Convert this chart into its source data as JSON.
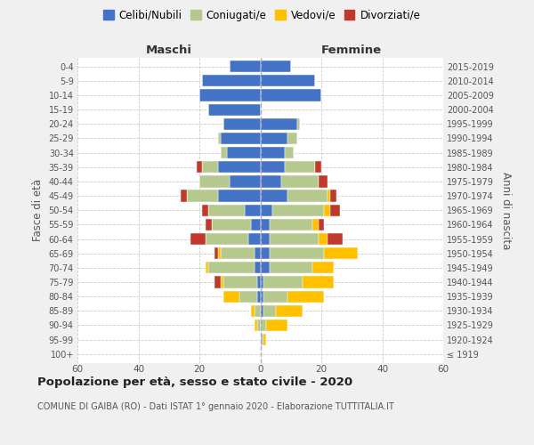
{
  "age_groups": [
    "100+",
    "95-99",
    "90-94",
    "85-89",
    "80-84",
    "75-79",
    "70-74",
    "65-69",
    "60-64",
    "55-59",
    "50-54",
    "45-49",
    "40-44",
    "35-39",
    "30-34",
    "25-29",
    "20-24",
    "15-19",
    "10-14",
    "5-9",
    "0-4"
  ],
  "birth_years": [
    "≤ 1919",
    "1920-1924",
    "1925-1929",
    "1930-1934",
    "1935-1939",
    "1940-1944",
    "1945-1949",
    "1950-1954",
    "1955-1959",
    "1960-1964",
    "1965-1969",
    "1970-1974",
    "1975-1979",
    "1980-1984",
    "1985-1989",
    "1990-1994",
    "1995-1999",
    "2000-2004",
    "2005-2009",
    "2010-2014",
    "2015-2019"
  ],
  "maschi": {
    "celibi": [
      0,
      0,
      0,
      0,
      1,
      1,
      2,
      2,
      4,
      3,
      5,
      14,
      10,
      14,
      11,
      13,
      12,
      17,
      20,
      19,
      10
    ],
    "coniugati": [
      0,
      0,
      1,
      2,
      6,
      11,
      15,
      11,
      14,
      13,
      12,
      10,
      10,
      5,
      2,
      1,
      0,
      0,
      0,
      0,
      0
    ],
    "vedovi": [
      0,
      0,
      1,
      1,
      5,
      1,
      1,
      1,
      0,
      0,
      0,
      0,
      0,
      0,
      0,
      0,
      0,
      0,
      0,
      0,
      0
    ],
    "divorziati": [
      0,
      0,
      0,
      0,
      0,
      2,
      0,
      1,
      5,
      2,
      2,
      2,
      0,
      2,
      0,
      0,
      0,
      0,
      0,
      0,
      0
    ]
  },
  "femmine": {
    "nubili": [
      0,
      0,
      0,
      1,
      1,
      1,
      3,
      3,
      3,
      3,
      4,
      9,
      7,
      8,
      8,
      9,
      12,
      0,
      20,
      18,
      10
    ],
    "coniugate": [
      0,
      1,
      2,
      4,
      8,
      13,
      14,
      18,
      16,
      14,
      17,
      13,
      12,
      10,
      3,
      3,
      1,
      0,
      0,
      0,
      0
    ],
    "vedove": [
      0,
      1,
      7,
      9,
      12,
      10,
      7,
      11,
      3,
      2,
      2,
      1,
      0,
      0,
      0,
      0,
      0,
      0,
      0,
      0,
      0
    ],
    "divorziate": [
      0,
      0,
      0,
      0,
      0,
      0,
      0,
      0,
      5,
      2,
      3,
      2,
      3,
      2,
      0,
      0,
      0,
      0,
      0,
      0,
      0
    ]
  },
  "colors": {
    "celibi_nubili": "#4472c4",
    "coniugati": "#b5c98e",
    "vedovi": "#ffc000",
    "divorziati": "#c0392b"
  },
  "xlim": 60,
  "title": "Popolazione per età, sesso e stato civile - 2020",
  "subtitle": "COMUNE DI GAIBA (RO) - Dati ISTAT 1° gennaio 2020 - Elaborazione TUTTITALIA.IT",
  "ylabel_left": "Fasce di età",
  "ylabel_right": "Anni di nascita",
  "xlabel_left": "Maschi",
  "xlabel_right": "Femmine",
  "bg_color": "#f0f0f0",
  "plot_bg_color": "#ffffff"
}
